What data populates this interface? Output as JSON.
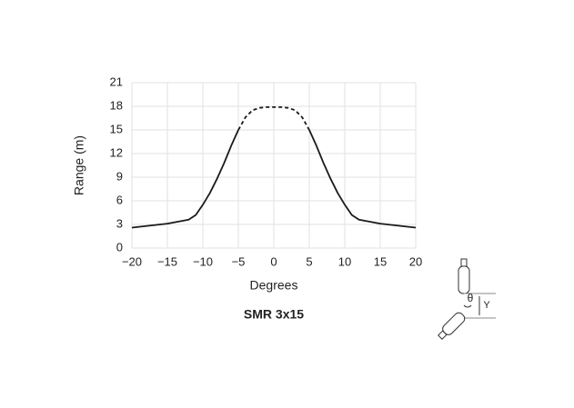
{
  "chart_data": {
    "type": "line",
    "title": "SMR 3x15",
    "x_label": "Degrees",
    "y_label": "Range (m)",
    "x": [
      -20,
      -15,
      -12,
      -11,
      -10,
      -9,
      -8,
      -7,
      -6,
      -5,
      -4,
      -3,
      -2,
      -1,
      0,
      1,
      2,
      3,
      4,
      5,
      6,
      7,
      8,
      9,
      10,
      11,
      12,
      15,
      20
    ],
    "series": [
      {
        "color": "#1a1a1a",
        "dashed": false,
        "values": [
          2.6,
          3.1,
          3.6,
          4.2,
          5.5,
          7.0,
          8.8,
          10.8,
          13.0,
          15.0,
          null,
          null,
          null,
          null,
          null,
          null,
          null,
          null,
          null,
          15.0,
          13.0,
          10.8,
          8.8,
          7.0,
          5.5,
          4.2,
          3.6,
          3.1,
          2.6
        ]
      },
      {
        "color": "#1a1a1a",
        "dashed": true,
        "values": [
          null,
          null,
          null,
          null,
          null,
          null,
          null,
          null,
          null,
          15.0,
          16.6,
          17.5,
          17.8,
          17.9,
          17.9,
          17.9,
          17.8,
          17.5,
          16.6,
          15.0,
          null,
          null,
          null,
          null,
          null,
          null,
          null,
          null,
          null
        ]
      }
    ],
    "xlim": [
      -20,
      20
    ],
    "xticks": [
      {
        "value": -20,
        "label": "−20"
      },
      {
        "value": -15,
        "label": "−15"
      },
      {
        "value": -10,
        "label": "−10"
      },
      {
        "value": -5,
        "label": "−5"
      },
      0,
      5,
      10,
      15,
      20
    ],
    "ylim": [
      0,
      21
    ],
    "yticks": [
      0,
      3,
      6,
      9,
      12,
      15,
      18,
      21
    ],
    "grid": true
  },
  "diagram": {
    "angle_label": "θ",
    "offset_label": "Y"
  }
}
